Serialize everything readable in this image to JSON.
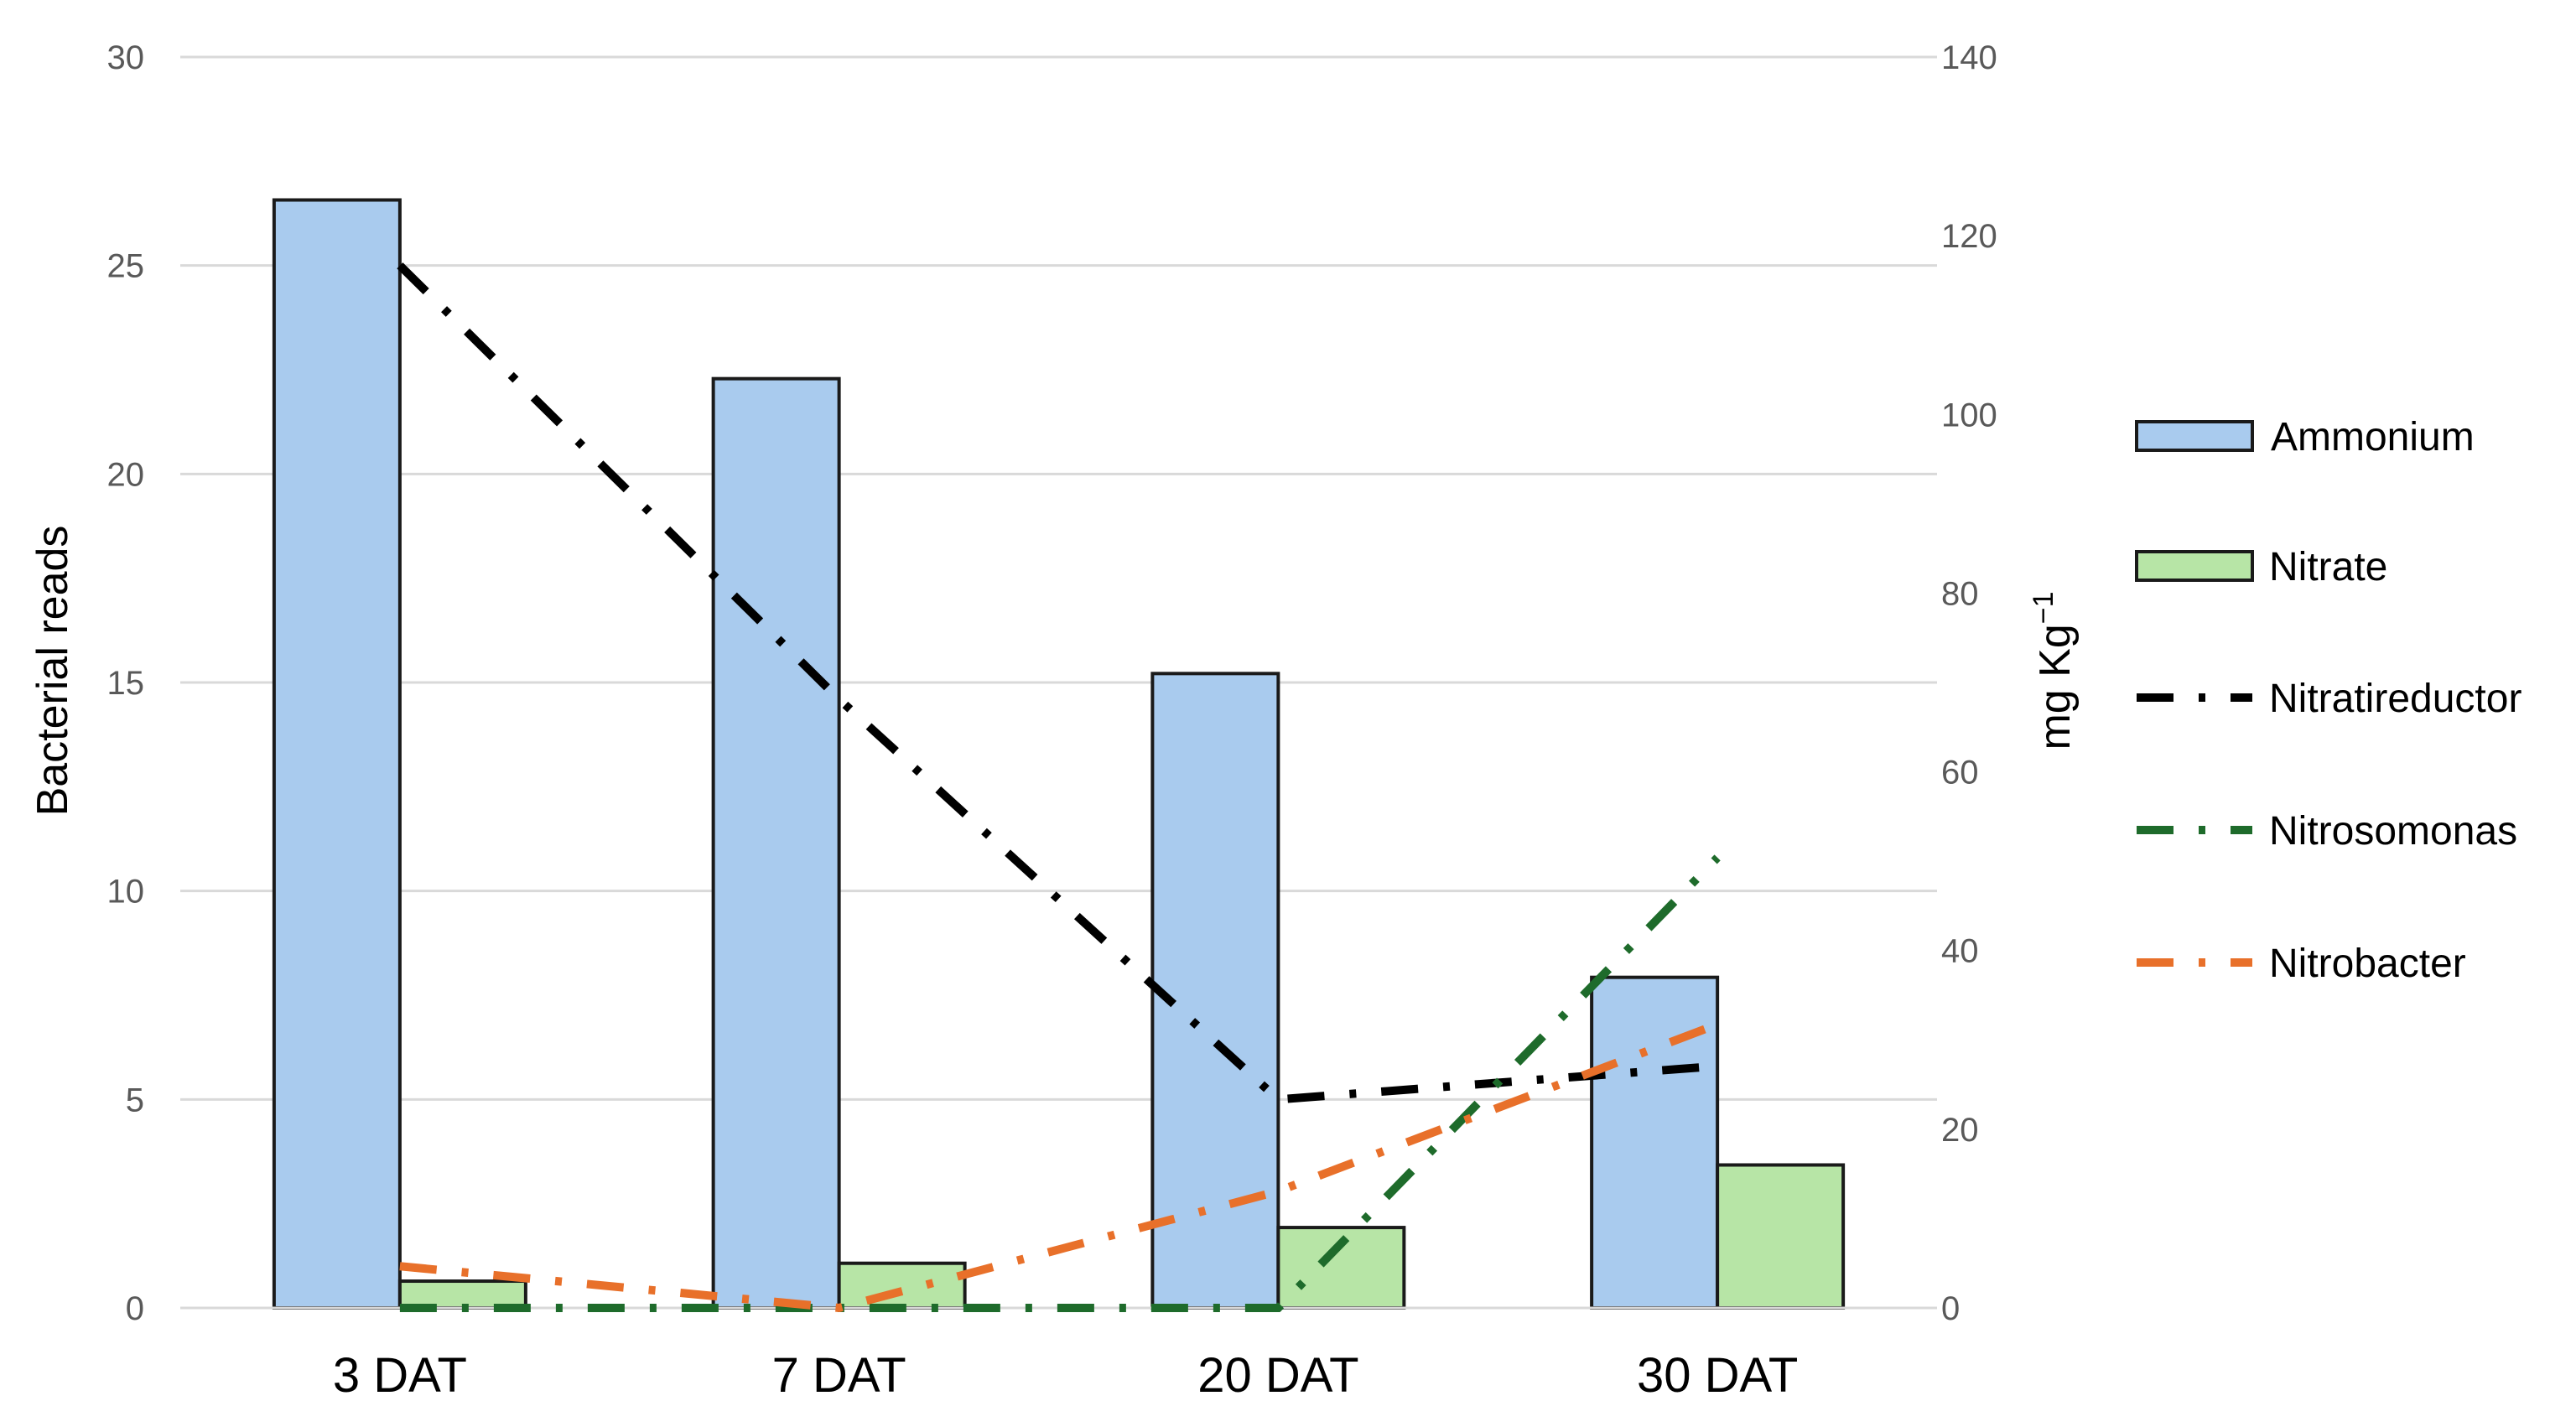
{
  "chart_data": {
    "type": "bar",
    "categories": [
      "3  DAT",
      "7  DAT",
      "20  DAT",
      "30  DAT"
    ],
    "series": [
      {
        "name": "Ammonium",
        "kind": "bar",
        "axis": "right",
        "color": "#A9CBEE",
        "values": [
          124,
          104,
          71,
          37
        ]
      },
      {
        "name": "Nitrate",
        "kind": "bar",
        "axis": "right",
        "color": "#B7E5A6",
        "values": [
          3,
          5,
          9,
          16
        ]
      },
      {
        "name": "Nitratireductor",
        "kind": "line",
        "axis": "left",
        "color": "#000000",
        "dash": "longdashdot",
        "values": [
          25,
          14.6,
          5,
          5.8
        ]
      },
      {
        "name": "Nitrosomonas",
        "kind": "line",
        "axis": "left",
        "color": "#1E6B2B",
        "dash": "longdashdot",
        "values": [
          0,
          0,
          0,
          10.8
        ]
      },
      {
        "name": "Nitrobacter",
        "kind": "line",
        "axis": "left",
        "color": "#E8702A",
        "dash": "longdashdot",
        "values": [
          1,
          0,
          2.8,
          6.8
        ]
      }
    ],
    "ylabel": "Bacterial reads",
    "ylim": [
      0,
      30
    ],
    "yticks": [
      "0",
      "5",
      "10",
      "15",
      "20",
      "25",
      "30"
    ],
    "y2label": "mg Kg",
    "y2label_sup": "−1",
    "y2lim": [
      0,
      140
    ],
    "y2ticks": [
      "0",
      "20",
      "40",
      "60",
      "80",
      "100",
      "120",
      "140"
    ],
    "grid": true,
    "legend": "right"
  }
}
